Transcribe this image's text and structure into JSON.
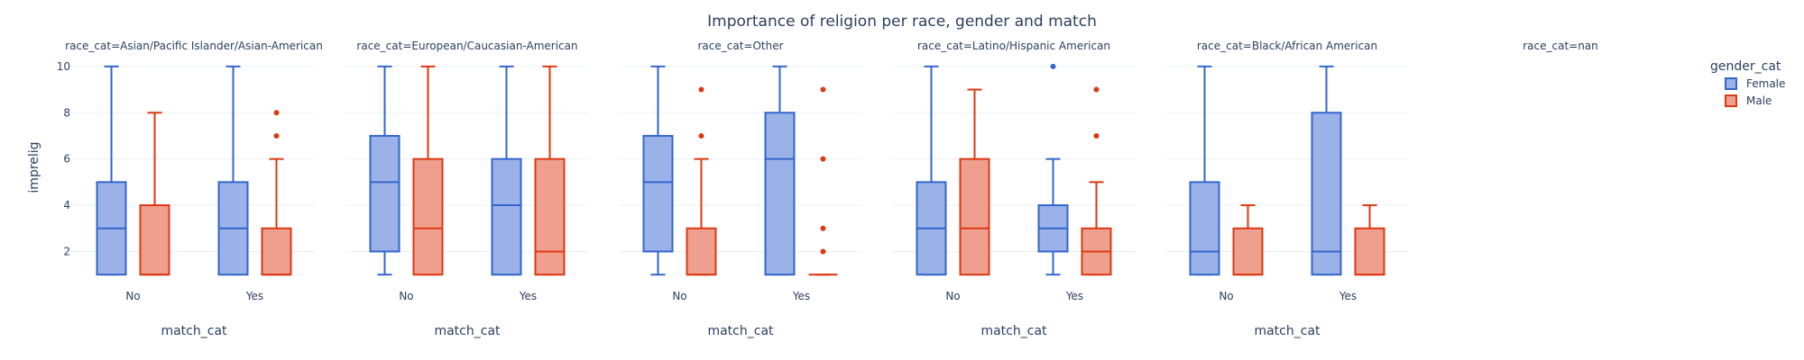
{
  "chart_data": {
    "type": "box",
    "title": "Importance of religion per race, gender and match",
    "xlabel": "match_cat",
    "ylabel": "imprelig",
    "ylim": [
      0.5,
      10.5
    ],
    "yticks": [
      2,
      4,
      6,
      8,
      10
    ],
    "categories": [
      "No",
      "Yes"
    ],
    "legend": {
      "title": "gender_cat",
      "placement": "top-right",
      "entries": [
        {
          "name": "Female",
          "fill": "#9ab2e8",
          "stroke": "#3366cc"
        },
        {
          "name": "Male",
          "fill": "#ef9f8e",
          "stroke": "#dc3912"
        }
      ]
    },
    "facets": [
      {
        "label": "race_cat=Asian/Pacific Islander/Asian-American",
        "boxes": [
          {
            "category": "No",
            "series": "Female",
            "min": 1,
            "q1": 1,
            "median": 3,
            "q3": 5,
            "max": 10,
            "outliers": []
          },
          {
            "category": "No",
            "series": "Male",
            "min": 1,
            "q1": 1,
            "median": 1,
            "q3": 4,
            "max": 8,
            "outliers": []
          },
          {
            "category": "Yes",
            "series": "Female",
            "min": 1,
            "q1": 1,
            "median": 3,
            "q3": 5,
            "max": 10,
            "outliers": []
          },
          {
            "category": "Yes",
            "series": "Male",
            "min": 1,
            "q1": 1,
            "median": 1,
            "q3": 3,
            "max": 6,
            "outliers": [
              7,
              8
            ]
          }
        ]
      },
      {
        "label": "race_cat=European/Caucasian-American",
        "boxes": [
          {
            "category": "No",
            "series": "Female",
            "min": 1,
            "q1": 2,
            "median": 5,
            "q3": 7,
            "max": 10,
            "outliers": []
          },
          {
            "category": "No",
            "series": "Male",
            "min": 1,
            "q1": 1,
            "median": 3,
            "q3": 6,
            "max": 10,
            "outliers": []
          },
          {
            "category": "Yes",
            "series": "Female",
            "min": 1,
            "q1": 1,
            "median": 4,
            "q3": 6,
            "max": 10,
            "outliers": []
          },
          {
            "category": "Yes",
            "series": "Male",
            "min": 1,
            "q1": 1,
            "median": 2,
            "q3": 6,
            "max": 10,
            "outliers": []
          }
        ]
      },
      {
        "label": "race_cat=Other",
        "boxes": [
          {
            "category": "No",
            "series": "Female",
            "min": 1,
            "q1": 2,
            "median": 5,
            "q3": 7,
            "max": 10,
            "outliers": []
          },
          {
            "category": "No",
            "series": "Male",
            "min": 1,
            "q1": 1,
            "median": 1,
            "q3": 3,
            "max": 6,
            "outliers": [
              7,
              9
            ]
          },
          {
            "category": "Yes",
            "series": "Female",
            "min": 1,
            "q1": 1,
            "median": 6,
            "q3": 8,
            "max": 10,
            "outliers": []
          },
          {
            "category": "Yes",
            "series": "Male",
            "min": 1,
            "q1": 1,
            "median": 1,
            "q3": 1,
            "max": 1,
            "outliers": [
              2,
              3,
              6,
              9
            ]
          }
        ]
      },
      {
        "label": "race_cat=Latino/Hispanic American",
        "boxes": [
          {
            "category": "No",
            "series": "Female",
            "min": 1,
            "q1": 1,
            "median": 3,
            "q3": 5,
            "max": 10,
            "outliers": []
          },
          {
            "category": "No",
            "series": "Male",
            "min": 1,
            "q1": 1,
            "median": 3,
            "q3": 6,
            "max": 9,
            "outliers": []
          },
          {
            "category": "Yes",
            "series": "Female",
            "min": 1,
            "q1": 2,
            "median": 3,
            "q3": 4,
            "max": 6,
            "outliers": [
              10
            ]
          },
          {
            "category": "Yes",
            "series": "Male",
            "min": 1,
            "q1": 1,
            "median": 2,
            "q3": 3,
            "max": 5,
            "outliers": [
              7,
              9
            ]
          }
        ]
      },
      {
        "label": "race_cat=Black/African American",
        "boxes": [
          {
            "category": "No",
            "series": "Female",
            "min": 1,
            "q1": 1,
            "median": 2,
            "q3": 5,
            "max": 10,
            "outliers": []
          },
          {
            "category": "No",
            "series": "Male",
            "min": 1,
            "q1": 1,
            "median": 1,
            "q3": 3,
            "max": 4,
            "outliers": []
          },
          {
            "category": "Yes",
            "series": "Female",
            "min": 1,
            "q1": 1,
            "median": 2,
            "q3": 8,
            "max": 10,
            "outliers": []
          },
          {
            "category": "Yes",
            "series": "Male",
            "min": 1,
            "q1": 1,
            "median": 1,
            "q3": 3,
            "max": 4,
            "outliers": []
          }
        ]
      },
      {
        "label": "race_cat=nan",
        "boxes": []
      }
    ],
    "grid": true
  }
}
